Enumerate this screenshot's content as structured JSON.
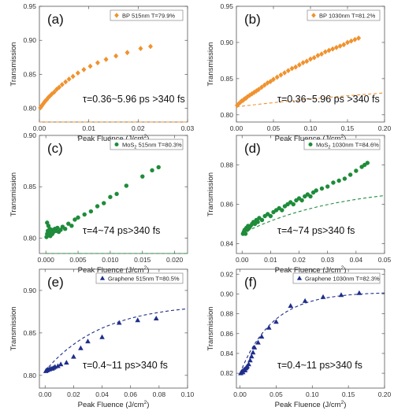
{
  "chart_data": [
    {
      "type": "scatter",
      "panel_label": "(a)",
      "legend": "BP 515nm T=79.9%",
      "annotation": "τ=0.36~5.96 ps >340 fs",
      "xlabel": "Peak Fluence (J/cm²)",
      "xlabel_main": "Peak Fluence (J/cm",
      "xlabel_sup": "2",
      "xlabel_end": ")",
      "ylabel": "Transmission",
      "xlim": [
        0,
        0.03
      ],
      "ylim": [
        0.78,
        0.95
      ],
      "xticks": [
        0.0,
        0.01,
        0.02,
        0.03
      ],
      "xtick_labels": [
        "0.00",
        "0.01",
        "0.02",
        "0.03"
      ],
      "yticks": [
        0.8,
        0.85,
        0.9,
        0.95
      ],
      "ytick_labels": [
        "0.80",
        "0.85",
        "0.90",
        "0.95"
      ],
      "marker": "diamond",
      "color": "#F0922E",
      "x": [
        0.0002,
        0.0004,
        0.0006,
        0.0008,
        0.001,
        0.0012,
        0.0015,
        0.0018,
        0.0021,
        0.0025,
        0.003,
        0.0035,
        0.004,
        0.0046,
        0.0053,
        0.006,
        0.0068,
        0.0078,
        0.009,
        0.0103,
        0.0118,
        0.0135,
        0.0155,
        0.0178,
        0.0205,
        0.0225
      ],
      "y": [
        0.801,
        0.803,
        0.805,
        0.807,
        0.809,
        0.811,
        0.813,
        0.816,
        0.818,
        0.821,
        0.824,
        0.828,
        0.831,
        0.835,
        0.839,
        0.843,
        0.847,
        0.852,
        0.857,
        0.862,
        0.867,
        0.872,
        0.877,
        0.882,
        0.888,
        0.891
      ],
      "fit": {
        "a": 0.85,
        "b": 0.145,
        "c": 11
      }
    },
    {
      "type": "scatter",
      "panel_label": "(b)",
      "legend": "BP 1030nm T=81.2%",
      "annotation": "τ=0.36~5.96 ps >340 fs",
      "xlabel": "Peak Fluence (J/cm²)",
      "xlabel_main": "Peak Fluence (J/cm",
      "xlabel_sup": "2",
      "xlabel_end": ")",
      "ylabel": "Transmission",
      "xlim": [
        0,
        0.2
      ],
      "ylim": [
        0.79,
        0.95
      ],
      "xticks": [
        0.0,
        0.05,
        0.1,
        0.15,
        0.2
      ],
      "xtick_labels": [
        "0.00",
        "0.05",
        "0.10",
        "0.15",
        "0.20"
      ],
      "yticks": [
        0.8,
        0.85,
        0.9,
        0.95
      ],
      "ytick_labels": [
        "0.80",
        "0.85",
        "0.90",
        "0.95"
      ],
      "marker": "diamond",
      "color": "#F0922E",
      "x": [
        0.001,
        0.003,
        0.005,
        0.007,
        0.009,
        0.011,
        0.013,
        0.015,
        0.018,
        0.021,
        0.024,
        0.027,
        0.03,
        0.034,
        0.038,
        0.042,
        0.046,
        0.05,
        0.055,
        0.06,
        0.065,
        0.07,
        0.075,
        0.08,
        0.085,
        0.09,
        0.095,
        0.1,
        0.105,
        0.11,
        0.115,
        0.12,
        0.125,
        0.13,
        0.135,
        0.14,
        0.145,
        0.15,
        0.155,
        0.16,
        0.165
      ],
      "y": [
        0.813,
        0.815,
        0.817,
        0.819,
        0.82,
        0.822,
        0.823,
        0.825,
        0.827,
        0.829,
        0.831,
        0.833,
        0.835,
        0.838,
        0.841,
        0.844,
        0.846,
        0.849,
        0.852,
        0.855,
        0.858,
        0.861,
        0.864,
        0.866,
        0.869,
        0.872,
        0.874,
        0.877,
        0.879,
        0.882,
        0.884,
        0.887,
        0.889,
        0.891,
        0.893,
        0.895,
        0.897,
        0.9,
        0.902,
        0.904,
        0.906
      ],
      "fit": {
        "a": 0.86,
        "b": 0.049,
        "c": 2.5
      }
    },
    {
      "type": "scatter",
      "panel_label": "(c)",
      "legend": "MoS",
      "legend_sub": "2",
      "legend_end": " 515nm T=80.3%",
      "annotation": "τ=4~74 ps>340 fs",
      "xlabel": "Peak Fluence (J/cm²)",
      "xlabel_main": "Peak Fluence (J/cm",
      "xlabel_sup": "2",
      "xlabel_end": ")",
      "ylabel": "Transmission",
      "xlim": [
        -0.001,
        0.022
      ],
      "ylim": [
        0.785,
        0.9
      ],
      "xticks": [
        0.0,
        0.005,
        0.01,
        0.015,
        0.02
      ],
      "xtick_labels": [
        "0.000",
        "0.005",
        "0.010",
        "0.015",
        "0.020"
      ],
      "yticks": [
        0.8,
        0.85,
        0.9
      ],
      "ytick_labels": [
        "0.80",
        "0.85",
        "0.90"
      ],
      "marker": "circle",
      "color": "#1E8C3A",
      "x": [
        0.0001,
        0.0002,
        0.0003,
        0.0004,
        0.0005,
        0.0006,
        0.0007,
        0.0008,
        0.0009,
        0.001,
        0.0012,
        0.0014,
        0.0016,
        0.0018,
        0.002,
        0.0023,
        0.0026,
        0.003,
        0.0035,
        0.004,
        0.0045,
        0.005,
        0.006,
        0.007,
        0.008,
        0.009,
        0.01,
        0.011,
        0.0125,
        0.015,
        0.0165,
        0.0175,
        0.0002,
        0.0004
      ],
      "y": [
        0.801,
        0.804,
        0.807,
        0.803,
        0.806,
        0.809,
        0.802,
        0.805,
        0.808,
        0.804,
        0.806,
        0.809,
        0.807,
        0.81,
        0.806,
        0.808,
        0.811,
        0.809,
        0.814,
        0.812,
        0.818,
        0.82,
        0.823,
        0.826,
        0.831,
        0.834,
        0.84,
        0.843,
        0.851,
        0.86,
        0.866,
        0.869,
        0.815,
        0.812
      ],
      "fit": {
        "a": 0.82,
        "b": 0.065,
        "c": 25
      }
    },
    {
      "type": "scatter",
      "panel_label": "(d)",
      "legend": "MoS",
      "legend_sub": "2",
      "legend_end": " 1030nm T=84.6%",
      "annotation": "τ=4~74 ps>340 fs",
      "xlabel": "Peak Fluence (J/cm²)",
      "xlabel_main": "Peak Fluence (J/cm",
      "xlabel_sup": "2",
      "xlabel_end": ")",
      "ylabel": "Transmission",
      "xlim": [
        -0.002,
        0.05
      ],
      "ylim": [
        0.835,
        0.895
      ],
      "xticks": [
        0.0,
        0.01,
        0.02,
        0.03,
        0.04,
        0.05
      ],
      "xtick_labels": [
        "0.00",
        "0.01",
        "0.02",
        "0.03",
        "0.04",
        "0.05"
      ],
      "yticks": [
        0.84,
        0.86,
        0.88
      ],
      "ytick_labels": [
        "0.84",
        "0.86",
        "0.88"
      ],
      "marker": "circle",
      "color": "#1E8C3A",
      "x": [
        0.0003,
        0.0006,
        0.0009,
        0.0012,
        0.0015,
        0.0018,
        0.0021,
        0.0025,
        0.003,
        0.0035,
        0.004,
        0.0045,
        0.005,
        0.0055,
        0.006,
        0.007,
        0.008,
        0.009,
        0.01,
        0.011,
        0.012,
        0.013,
        0.014,
        0.015,
        0.016,
        0.017,
        0.018,
        0.019,
        0.02,
        0.021,
        0.022,
        0.023,
        0.024,
        0.025,
        0.026,
        0.028,
        0.03,
        0.032,
        0.034,
        0.036,
        0.038,
        0.04,
        0.042,
        0.043,
        0.044
      ],
      "y": [
        0.845,
        0.846,
        0.847,
        0.845,
        0.848,
        0.847,
        0.849,
        0.848,
        0.849,
        0.85,
        0.851,
        0.85,
        0.852,
        0.851,
        0.853,
        0.852,
        0.854,
        0.855,
        0.854,
        0.856,
        0.857,
        0.858,
        0.857,
        0.859,
        0.86,
        0.861,
        0.86,
        0.862,
        0.863,
        0.862,
        0.864,
        0.865,
        0.864,
        0.866,
        0.867,
        0.868,
        0.869,
        0.871,
        0.872,
        0.873,
        0.875,
        0.877,
        0.879,
        0.88,
        0.881
      ],
      "fit": {
        "a": 0.87,
        "b": 0.025,
        "c": 30
      }
    },
    {
      "type": "scatter",
      "panel_label": "(e)",
      "legend": "Graphene 515nm T=80.5%",
      "annotation": "τ=0.4~11 ps>340 fs",
      "xlabel": "Peak Fluence (J/cm²)",
      "xlabel_main": "Peak Fluence (J/cm",
      "xlabel_sup": "2",
      "xlabel_end": ")",
      "ylabel": "Transmission",
      "xlim": [
        -0.004,
        0.1
      ],
      "ylim": [
        0.785,
        0.925
      ],
      "xticks": [
        0.0,
        0.02,
        0.04,
        0.06,
        0.08,
        0.1
      ],
      "xtick_labels": [
        "0.00",
        "0.02",
        "0.04",
        "0.06",
        "0.08",
        "0.10"
      ],
      "yticks": [
        0.8,
        0.85,
        0.9
      ],
      "ytick_labels": [
        "0.80",
        "0.85",
        "0.90"
      ],
      "marker": "triangle",
      "color": "#1F2E8A",
      "x": [
        0.0005,
        0.001,
        0.0015,
        0.002,
        0.003,
        0.004,
        0.005,
        0.006,
        0.007,
        0.009,
        0.011,
        0.015,
        0.02,
        0.025,
        0.03,
        0.04,
        0.052,
        0.065,
        0.078
      ],
      "y": [
        0.805,
        0.806,
        0.806,
        0.807,
        0.807,
        0.808,
        0.808,
        0.809,
        0.81,
        0.811,
        0.813,
        0.815,
        0.822,
        0.832,
        0.84,
        0.845,
        0.862,
        0.865,
        0.867
      ],
      "fit": {
        "a": 0.885,
        "b": 0.08,
        "c": 25
      }
    },
    {
      "type": "scatter",
      "panel_label": "(f)",
      "legend": "Graphene 1030nm T=82.3%",
      "annotation": "τ=0.4~11 ps>340 fs",
      "xlabel": "Peak Fluence (J/cm²)",
      "xlabel_main": "Peak Fluence (J/cm",
      "xlabel_sup": "2",
      "xlabel_end": ")",
      "ylabel": "Transmission",
      "xlim": [
        -0.005,
        0.2
      ],
      "ylim": [
        0.805,
        0.925
      ],
      "xticks": [
        0.0,
        0.05,
        0.1,
        0.15,
        0.2
      ],
      "xtick_labels": [
        "0.00",
        "0.05",
        "0.10",
        "0.15",
        "0.20"
      ],
      "yticks": [
        0.82,
        0.84,
        0.86,
        0.88,
        0.9,
        0.92
      ],
      "ytick_labels": [
        "0.82",
        "0.84",
        "0.86",
        "0.88",
        "0.90",
        "0.92"
      ],
      "marker": "triangle",
      "color": "#1F2E8A",
      "x": [
        0.001,
        0.002,
        0.003,
        0.004,
        0.005,
        0.006,
        0.007,
        0.008,
        0.009,
        0.01,
        0.012,
        0.014,
        0.016,
        0.018,
        0.02,
        0.025,
        0.03,
        0.04,
        0.05,
        0.07,
        0.09,
        0.115,
        0.14,
        0.165
      ],
      "y": [
        0.82,
        0.821,
        0.822,
        0.821,
        0.823,
        0.824,
        0.823,
        0.825,
        0.826,
        0.827,
        0.829,
        0.833,
        0.837,
        0.841,
        0.846,
        0.851,
        0.857,
        0.866,
        0.872,
        0.888,
        0.893,
        0.897,
        0.899,
        0.901
      ],
      "fit": {
        "a": 0.902,
        "b": 0.082,
        "c": 22
      }
    }
  ]
}
